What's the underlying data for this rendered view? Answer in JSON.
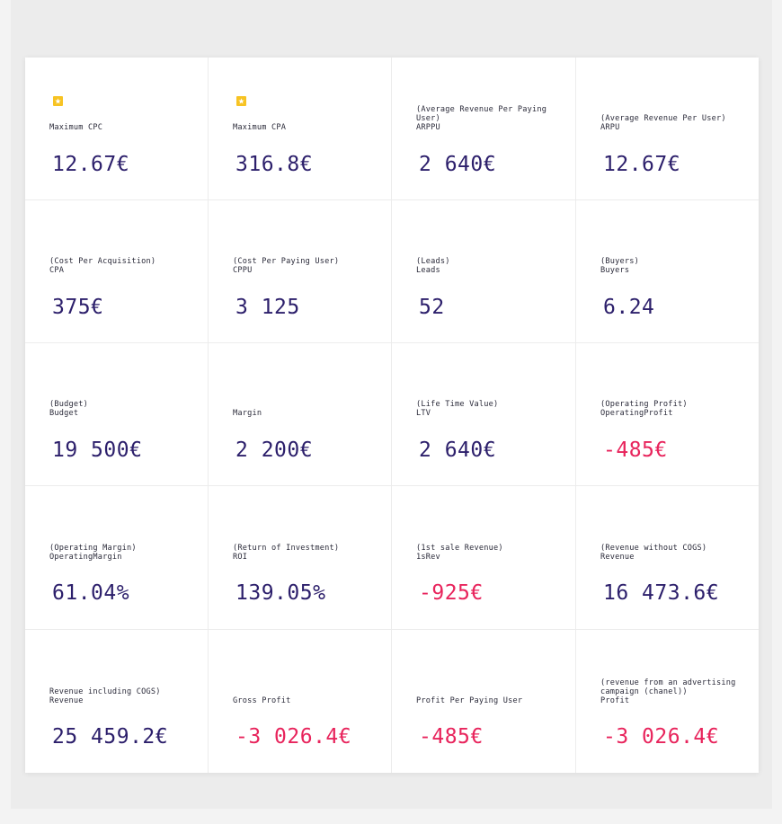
{
  "colors": {
    "value": "#2c1f6b",
    "negative": "#e8245c",
    "star": "#f7c323",
    "label": "#2b2b3a"
  },
  "metrics": [
    {
      "starred": true,
      "desc": "",
      "name": "Maximum CPC",
      "value": "12.67€",
      "negative": false
    },
    {
      "starred": true,
      "desc": "",
      "name": "Maximum CPA",
      "value": "316.8€",
      "negative": false
    },
    {
      "starred": false,
      "desc": "(Average Revenue Per Paying User)",
      "name": "ARPPU",
      "value": "2 640€",
      "negative": false
    },
    {
      "starred": false,
      "desc": "(Average Revenue Per User)",
      "name": "ARPU",
      "value": "12.67€",
      "negative": false
    },
    {
      "starred": false,
      "desc": "(Cost Per Acquisition)",
      "name": "CPA",
      "value": "375€",
      "negative": false
    },
    {
      "starred": false,
      "desc": "(Cost Per Paying User)",
      "name": "CPPU",
      "value": "3 125",
      "negative": false
    },
    {
      "starred": false,
      "desc": "(Leads)",
      "name": "Leads",
      "value": "52",
      "negative": false
    },
    {
      "starred": false,
      "desc": "(Buyers)",
      "name": "Buyers",
      "value": "6.24",
      "negative": false
    },
    {
      "starred": false,
      "desc": "(Budget)",
      "name": "Budget",
      "value": "19 500€",
      "negative": false
    },
    {
      "starred": false,
      "desc": "",
      "name": "Margin",
      "value": "2 200€",
      "negative": false
    },
    {
      "starred": false,
      "desc": "(Life Time Value)",
      "name": "LTV",
      "value": "2 640€",
      "negative": false
    },
    {
      "starred": false,
      "desc": "(Operating Profit)",
      "name": "OperatingProfit",
      "value": "-485€",
      "negative": true
    },
    {
      "starred": false,
      "desc": "(Operating Margin)",
      "name": "OperatingMargin",
      "value": "61.04%",
      "negative": false
    },
    {
      "starred": false,
      "desc": "(Return of Investment)",
      "name": "ROI",
      "value": "139.05%",
      "negative": false
    },
    {
      "starred": false,
      "desc": "(1st sale Revenue)",
      "name": "1sRev",
      "value": "-925€",
      "negative": true
    },
    {
      "starred": false,
      "desc": "(Revenue without COGS)",
      "name": "Revenue",
      "value": "16 473.6€",
      "negative": false
    },
    {
      "starred": false,
      "desc": "Revenue including COGS)",
      "name": "Revenue",
      "value": "25 459.2€",
      "negative": false
    },
    {
      "starred": false,
      "desc": "",
      "name": "Gross Profit",
      "value": "-3 026.4€",
      "negative": true
    },
    {
      "starred": false,
      "desc": "",
      "name": "Profit Per Paying User",
      "value": "-485€",
      "negative": true
    },
    {
      "starred": false,
      "desc": "(revenue from an advertising campaign (chanel))",
      "name": "Profit",
      "value": "-3 026.4€",
      "negative": true
    }
  ]
}
